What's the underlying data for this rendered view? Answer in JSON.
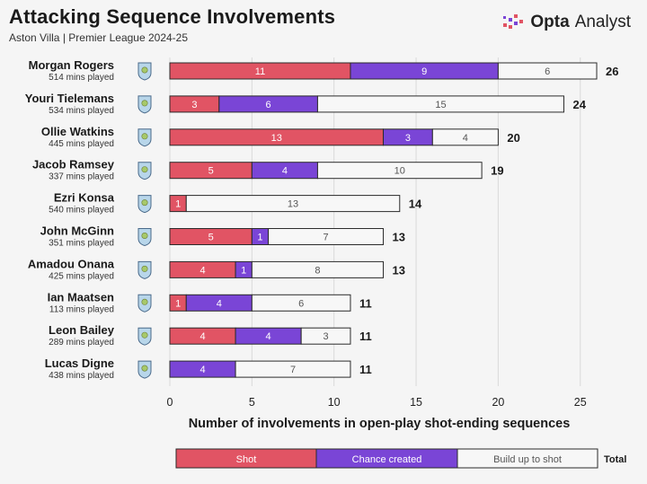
{
  "header": {
    "title": "Attacking Sequence Involvements",
    "subtitle": "Aston Villa | Premier League 2024-25",
    "brand_opta": "Opta",
    "brand_analyst": "Analyst"
  },
  "colors": {
    "shot": "#e15464",
    "chance_created": "#7a45d6",
    "build_up": "#f7f7f7",
    "outline": "#2b2b2b",
    "crest_fill": "#b8d6ea",
    "crest_detail": "#a7c96a"
  },
  "chart_data": {
    "type": "bar",
    "orientation": "horizontal",
    "stacked": true,
    "categories": [
      "Morgan Rogers",
      "Youri Tielemans",
      "Ollie Watkins",
      "Jacob Ramsey",
      "Ezri Konsa",
      "John McGinn",
      "Amadou Onana",
      "Ian Maatsen",
      "Leon Bailey",
      "Lucas Digne"
    ],
    "minutes": [
      "514 mins played",
      "534 mins played",
      "445 mins played",
      "337 mins played",
      "540 mins played",
      "351 mins played",
      "425 mins played",
      "113 mins played",
      "289 mins played",
      "438 mins played"
    ],
    "series": [
      {
        "name": "Shot",
        "values": [
          11,
          3,
          13,
          5,
          1,
          5,
          4,
          1,
          4,
          0
        ]
      },
      {
        "name": "Chance created",
        "values": [
          9,
          6,
          3,
          4,
          0,
          1,
          1,
          4,
          4,
          4
        ]
      },
      {
        "name": "Build up to shot",
        "values": [
          6,
          15,
          4,
          10,
          13,
          7,
          8,
          6,
          3,
          7
        ]
      }
    ],
    "totals": [
      26,
      24,
      20,
      19,
      14,
      13,
      13,
      11,
      11,
      11
    ],
    "xlabel": "Number of involvements in open-play shot-ending sequences",
    "xlim": [
      0,
      26
    ],
    "xticks": [
      0,
      5,
      10,
      15,
      20,
      25
    ],
    "grid": "vertical",
    "legend": {
      "position": "bottom",
      "items": [
        "Shot",
        "Chance created",
        "Build up to shot"
      ],
      "total_label": "Total"
    }
  }
}
